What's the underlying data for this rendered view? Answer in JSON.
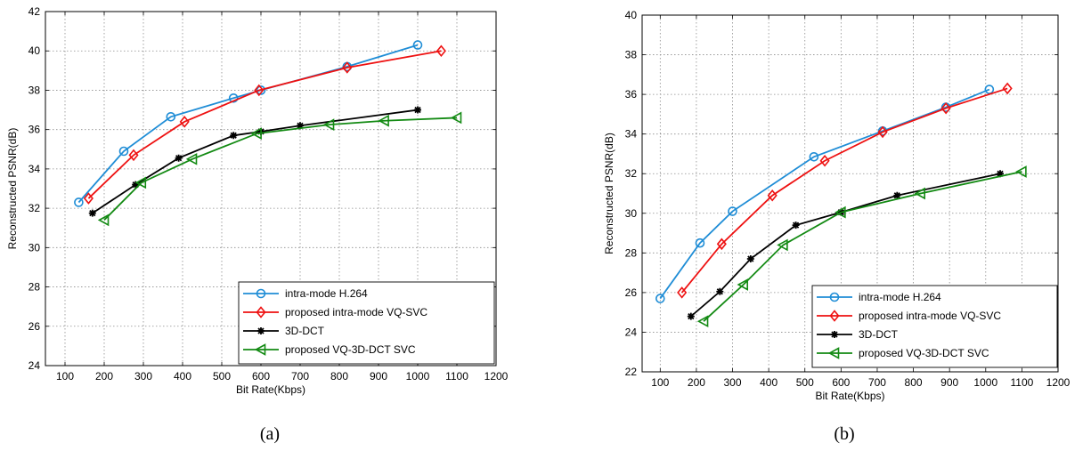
{
  "chart_data": [
    {
      "type": "line",
      "caption": "(a)",
      "xlabel": "Bit Rate(Kbps)",
      "ylabel": "Reconstructed PSNR(dB)",
      "xlim": [
        50,
        1200
      ],
      "ylim": [
        24,
        42
      ],
      "xticks": [
        "100",
        "200",
        "300",
        "400",
        "500",
        "600",
        "700",
        "800",
        "900",
        "1000",
        "1100",
        "1200"
      ],
      "yticks": [
        "24",
        "26",
        "28",
        "30",
        "32",
        "34",
        "36",
        "38",
        "40",
        "42"
      ],
      "grid": true,
      "legend_position": "bottom-right",
      "series": [
        {
          "name": "intra-mode H.264",
          "color": "#1f8dd6",
          "marker": "circle",
          "x": [
            135,
            250,
            370,
            530,
            600,
            820,
            1000
          ],
          "y": [
            32.3,
            34.9,
            36.65,
            37.6,
            38.0,
            39.2,
            40.3
          ]
        },
        {
          "name": "proposed intra-mode VQ-SVC",
          "color": "#ee1111",
          "marker": "diamond",
          "x": [
            160,
            275,
            405,
            595,
            820,
            1060
          ],
          "y": [
            32.5,
            34.7,
            36.4,
            38.0,
            39.15,
            40.0
          ]
        },
        {
          "name": "3D-DCT",
          "color": "#000000",
          "marker": "star",
          "x": [
            170,
            280,
            390,
            530,
            600,
            700,
            1000
          ],
          "y": [
            31.75,
            33.2,
            34.55,
            35.7,
            35.9,
            36.2,
            37.0
          ]
        },
        {
          "name": "proposed VQ-3D-DCT SVC",
          "color": "#138a13",
          "marker": "triangle-left",
          "x": [
            200,
            295,
            425,
            590,
            775,
            915,
            1100
          ],
          "y": [
            31.4,
            33.3,
            34.5,
            35.8,
            36.25,
            36.45,
            36.6
          ]
        }
      ]
    },
    {
      "type": "line",
      "caption": "(b)",
      "xlabel": "Bit Rate(Kbps)",
      "ylabel": "Reconstructed PSNR(dB)",
      "xlim": [
        50,
        1200
      ],
      "ylim": [
        22,
        40
      ],
      "xticks": [
        "100",
        "200",
        "300",
        "400",
        "500",
        "600",
        "700",
        "800",
        "900",
        "1000",
        "1100",
        "1200"
      ],
      "yticks": [
        "22",
        "24",
        "26",
        "28",
        "30",
        "32",
        "34",
        "36",
        "38",
        "40"
      ],
      "grid": true,
      "legend_position": "bottom-right",
      "series": [
        {
          "name": "intra-mode H.264",
          "color": "#1f8dd6",
          "marker": "circle",
          "x": [
            100,
            210,
            300,
            525,
            715,
            890,
            1010
          ],
          "y": [
            25.7,
            28.5,
            30.1,
            32.85,
            34.15,
            35.35,
            36.25
          ]
        },
        {
          "name": "proposed intra-mode VQ-SVC",
          "color": "#ee1111",
          "marker": "diamond",
          "x": [
            160,
            270,
            410,
            555,
            715,
            890,
            1060
          ],
          "y": [
            26.0,
            28.45,
            30.9,
            32.65,
            34.1,
            35.3,
            36.3
          ]
        },
        {
          "name": "3D-DCT",
          "color": "#000000",
          "marker": "star",
          "x": [
            185,
            265,
            350,
            475,
            600,
            755,
            1040
          ],
          "y": [
            24.8,
            26.05,
            27.7,
            29.4,
            30.05,
            30.9,
            32.0
          ]
        },
        {
          "name": "proposed VQ-3D-DCT SVC",
          "color": "#138a13",
          "marker": "triangle-left",
          "x": [
            220,
            330,
            440,
            600,
            820,
            1100
          ],
          "y": [
            24.55,
            26.4,
            28.4,
            30.05,
            31.0,
            32.1
          ]
        }
      ]
    }
  ]
}
